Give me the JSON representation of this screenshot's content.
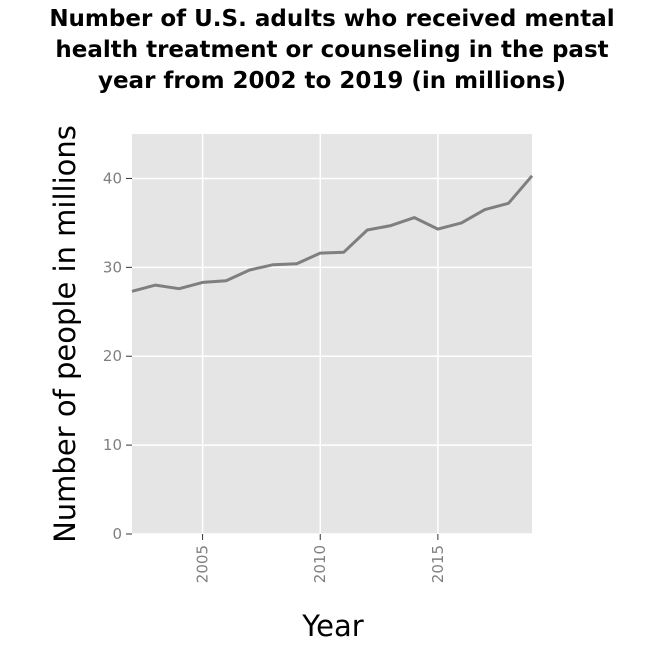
{
  "chart_data": {
    "type": "line",
    "title_lines": [
      "Number of U.S. adults who received mental",
      "health treatment or counseling in the past",
      "year from 2002 to 2019 (in millions)"
    ],
    "xlabel": "Year",
    "ylabel": "Number of people in millions",
    "x_ticks": [
      2005,
      2010,
      2015
    ],
    "y_ticks": [
      0,
      10,
      20,
      30,
      40
    ],
    "xlim": [
      2002,
      2019
    ],
    "ylim": [
      0,
      45
    ],
    "grid": true,
    "colors": {
      "panel": "#e5e5e5",
      "grid": "#ffffff",
      "line": "#7f7f7f"
    },
    "series": [
      {
        "x": [
          2002,
          2003,
          2004,
          2005,
          2006,
          2007,
          2008,
          2009,
          2010,
          2011,
          2012,
          2013,
          2014,
          2015,
          2016,
          2017,
          2018,
          2019
        ],
        "values": [
          27.3,
          28.0,
          27.6,
          28.3,
          28.5,
          29.7,
          30.3,
          30.4,
          31.6,
          31.7,
          34.2,
          34.7,
          35.6,
          34.3,
          35.0,
          36.5,
          37.2,
          40.3
        ]
      }
    ]
  }
}
